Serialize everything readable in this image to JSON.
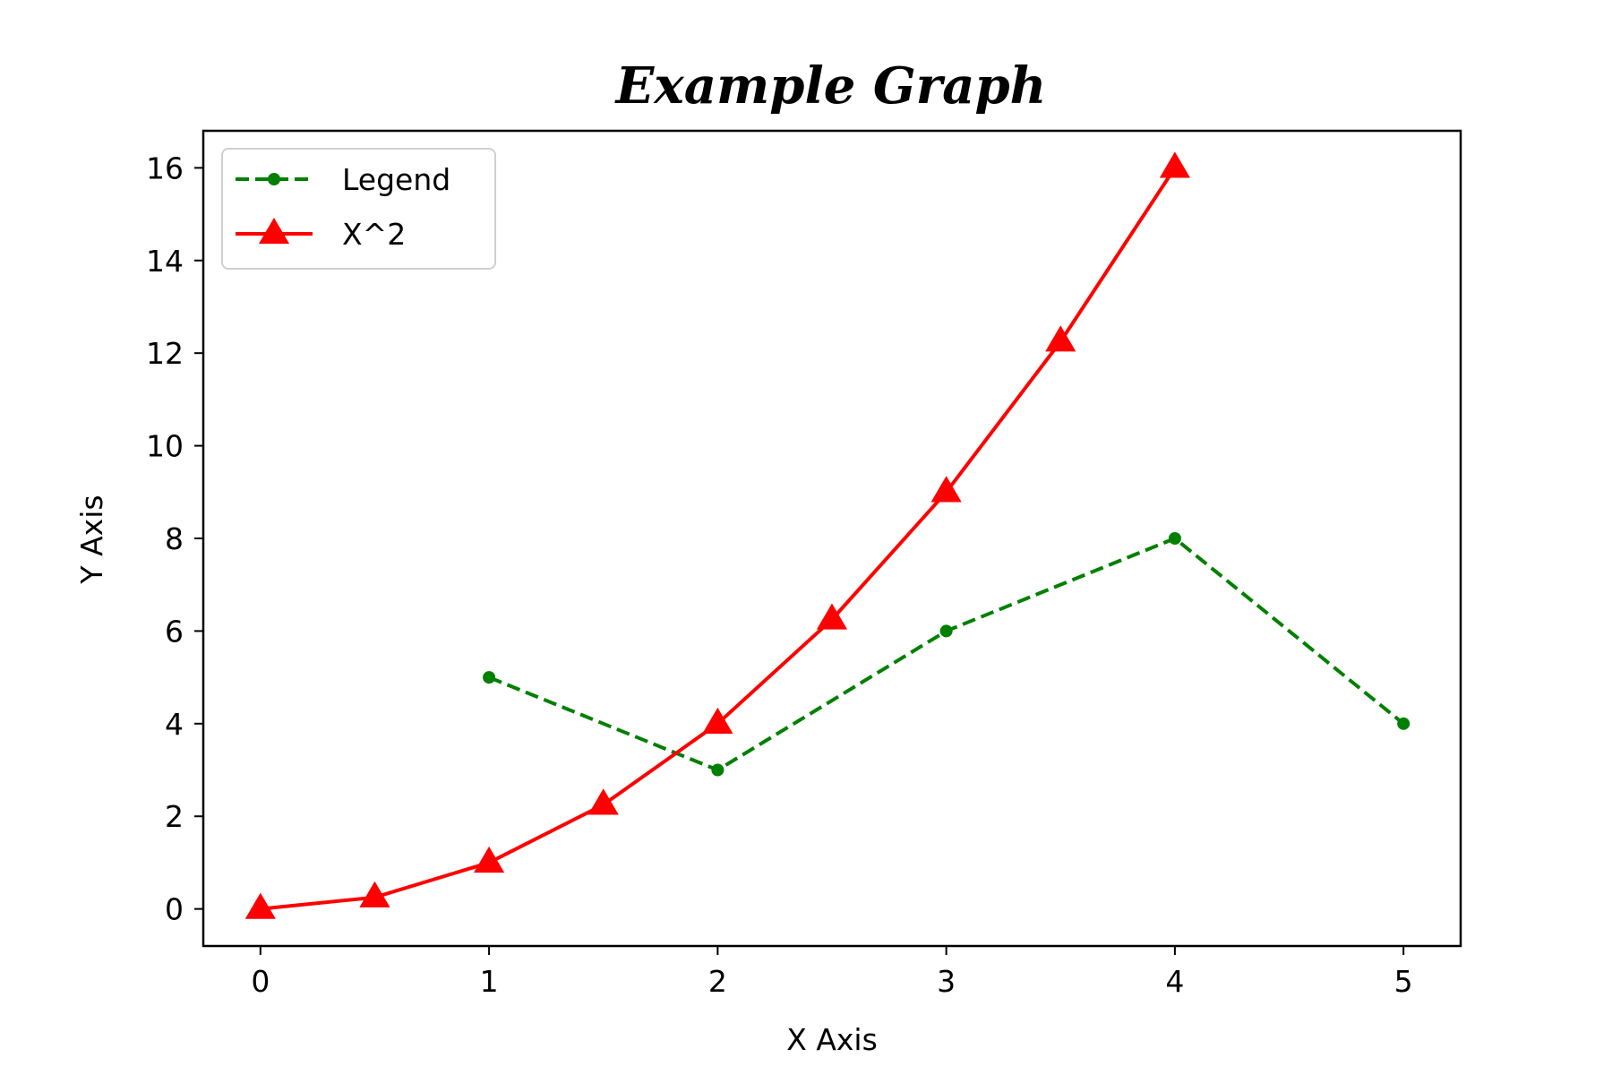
{
  "chart_data": {
    "type": "line",
    "title": "Example Graph",
    "xlabel": "X Axis",
    "ylabel": "Y Axis",
    "xlim": [
      -0.25,
      5.25
    ],
    "ylim": [
      -0.8,
      16.8
    ],
    "xticks": [
      0,
      1,
      2,
      3,
      4,
      5
    ],
    "yticks": [
      0,
      2,
      4,
      6,
      8,
      10,
      12,
      14,
      16
    ],
    "grid": false,
    "legend_position": "top-left",
    "series": [
      {
        "name": "Legend",
        "color": "#008000",
        "line_style": "dashed",
        "marker": "circle",
        "x": [
          1,
          2,
          3,
          4,
          5
        ],
        "y": [
          5,
          3,
          6,
          8,
          4
        ]
      },
      {
        "name": "X^2",
        "color": "#ff0000",
        "line_style": "solid",
        "marker": "triangle",
        "x": [
          0,
          0.5,
          1,
          1.5,
          2,
          2.5,
          3,
          3.5,
          4
        ],
        "y": [
          0,
          0.25,
          1,
          2.25,
          4,
          6.25,
          9,
          12.25,
          16
        ]
      }
    ]
  }
}
